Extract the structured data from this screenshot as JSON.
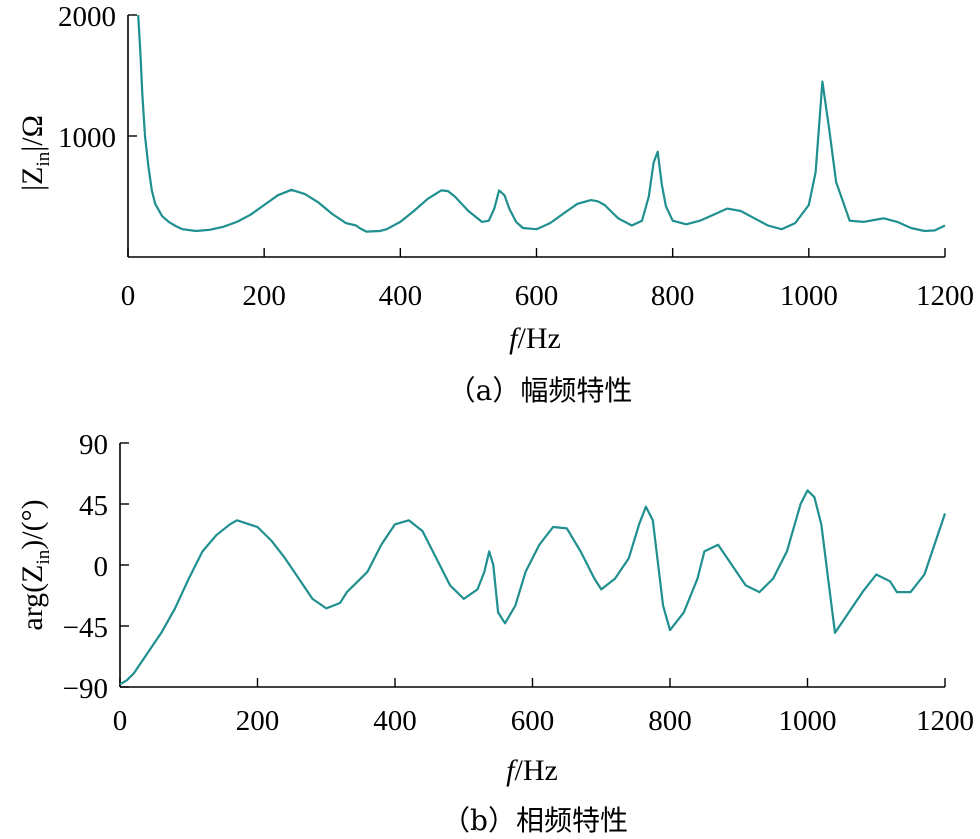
{
  "chart_data": [
    {
      "type": "line",
      "caption": "（a）幅频特性",
      "xlabel": {
        "italic": "f",
        "text": "/Hz"
      },
      "ylabel": {
        "pre": "|Z",
        "sub": "in",
        "post": "|/Ω"
      },
      "xlim": [
        0,
        1200
      ],
      "ylim": [
        0,
        2000
      ],
      "xticks": [
        "0",
        "200",
        "400",
        "600",
        "800",
        "1000",
        "1200"
      ],
      "yticks": [
        "1000",
        "2000"
      ],
      "line_color": "#1f8f8f",
      "series": [
        {
          "x": [
            15,
            18,
            21,
            25,
            30,
            35,
            40,
            50,
            60,
            70,
            80,
            100,
            120,
            140,
            160,
            180,
            200,
            220,
            240,
            260,
            280,
            300,
            320,
            335,
            340,
            350,
            370,
            380,
            400,
            420,
            440,
            460,
            470,
            480,
            500,
            520,
            530,
            538,
            545,
            553,
            560,
            570,
            580,
            600,
            620,
            640,
            660,
            680,
            690,
            700,
            720,
            740,
            755,
            765,
            772,
            778,
            784,
            790,
            800,
            820,
            840,
            860,
            880,
            900,
            920,
            940,
            960,
            980,
            1000,
            1010,
            1020,
            1030,
            1040,
            1060,
            1080,
            1100,
            1110,
            1130,
            1150,
            1170,
            1185,
            1200
          ],
          "y": [
            2000,
            1700,
            1350,
            1000,
            750,
            550,
            440,
            340,
            290,
            255,
            230,
            215,
            225,
            250,
            290,
            350,
            430,
            510,
            555,
            520,
            450,
            355,
            280,
            260,
            240,
            210,
            215,
            230,
            290,
            380,
            480,
            550,
            545,
            500,
            380,
            290,
            300,
            400,
            550,
            510,
            400,
            290,
            240,
            230,
            280,
            360,
            440,
            470,
            460,
            430,
            320,
            260,
            300,
            500,
            780,
            870,
            600,
            420,
            300,
            270,
            300,
            350,
            400,
            380,
            320,
            260,
            230,
            280,
            430,
            700,
            1450,
            1050,
            620,
            300,
            290,
            310,
            320,
            290,
            240,
            215,
            220,
            260
          ]
        }
      ]
    },
    {
      "type": "line",
      "caption": "（b）相频特性",
      "xlabel": {
        "italic": "f",
        "text": "/Hz"
      },
      "ylabel": {
        "pre": "arg(Z",
        "sub": "in",
        "post": ")/(°)"
      },
      "xlim": [
        0,
        1200
      ],
      "ylim": [
        -90,
        90
      ],
      "xticks": [
        "0",
        "200",
        "400",
        "600",
        "800",
        "1000",
        "1200"
      ],
      "yticks": [
        "−90",
        "−45",
        "0",
        "45",
        "90"
      ],
      "line_color": "#1f8f8f",
      "series": [
        {
          "x": [
            0,
            10,
            20,
            40,
            60,
            80,
            100,
            120,
            140,
            160,
            170,
            200,
            220,
            240,
            260,
            280,
            300,
            320,
            330,
            340,
            360,
            380,
            400,
            420,
            440,
            460,
            480,
            500,
            520,
            530,
            537,
            543,
            550,
            560,
            575,
            590,
            610,
            630,
            650,
            670,
            690,
            700,
            720,
            740,
            755,
            765,
            775,
            790,
            800,
            820,
            840,
            850,
            870,
            890,
            910,
            930,
            950,
            970,
            990,
            1000,
            1010,
            1020,
            1030,
            1040,
            1060,
            1080,
            1100,
            1120,
            1130,
            1150,
            1170,
            1200
          ],
          "y": [
            -88,
            -85,
            -80,
            -65,
            -50,
            -32,
            -10,
            10,
            22,
            30,
            33,
            28,
            18,
            5,
            -10,
            -25,
            -32,
            -28,
            -20,
            -15,
            -5,
            15,
            30,
            33,
            25,
            5,
            -15,
            -25,
            -18,
            -5,
            10,
            0,
            -35,
            -43,
            -30,
            -5,
            15,
            28,
            27,
            10,
            -10,
            -18,
            -10,
            5,
            30,
            43,
            33,
            -30,
            -48,
            -35,
            -10,
            10,
            15,
            0,
            -15,
            -20,
            -10,
            10,
            45,
            55,
            50,
            30,
            -10,
            -50,
            -35,
            -20,
            -7,
            -12,
            -20,
            -20,
            -7,
            38
          ]
        }
      ]
    }
  ]
}
